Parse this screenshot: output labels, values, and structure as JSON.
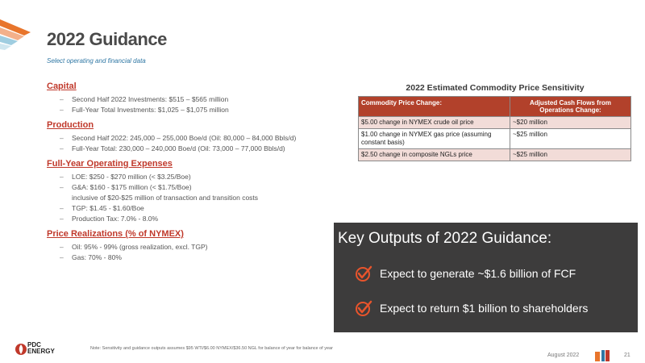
{
  "title": "2022 Guidance",
  "subtitle": "Select operating and financial data",
  "sections": [
    {
      "heading": "Capital",
      "items": [
        {
          "text": "Second Half 2022 Investments: $515 – $565 million"
        },
        {
          "text": "Full-Year Total Investments: $1,025 – $1,075 million"
        }
      ]
    },
    {
      "heading": "Production",
      "items": [
        {
          "text": "Second Half 2022: 245,000 – 255,000 Boe/d (Oil: 80,000 – 84,000 Bbls/d)"
        },
        {
          "text": "Full-Year Total: 230,000 – 240,000 Boe/d (Oil: 73,000 – 77,000 Bbls/d)"
        }
      ]
    },
    {
      "heading": "Full-Year Operating Expenses",
      "items": [
        {
          "text": "LOE: $250 - $270 million (< $3.25/Boe)"
        },
        {
          "text": "G&A: $160 - $175 million (< $1.75/Boe)",
          "sub": "inclusive of $20-$25 million of transaction and transition costs"
        },
        {
          "text": "TGP: $1.45 - $1.60/Boe"
        },
        {
          "text": "Production Tax: 7.0% - 8.0%"
        }
      ]
    },
    {
      "heading": "Price Realizations (% of NYMEX)",
      "items": [
        {
          "text": "Oil: 95% - 99% (gross realization, excl. TGP)"
        },
        {
          "text": "Gas: 70% - 80%"
        }
      ]
    }
  ],
  "sensitivity": {
    "title": "2022 Estimated Commodity Price Sensitivity",
    "headers": [
      "Commodity Price Change:",
      "Adjusted Cash Flows from Operations Change:"
    ],
    "rows": [
      [
        "$5.00 change in NYMEX crude oil price",
        "~$20 million"
      ],
      [
        "$1.00 change in NYMEX gas price (assuming constant basis)",
        "~$25 million"
      ],
      [
        "$2.50 change in composite NGLs price",
        "~$25 million"
      ]
    ]
  },
  "key_outputs": {
    "title": "Key Outputs of 2022 Guidance:",
    "items": [
      "Expect to generate ~$1.6 billion of FCF",
      "Expect to return $1 billion to shareholders"
    ],
    "check_color": "#e8542c"
  },
  "footer": {
    "logo_line1": "PDC",
    "logo_line2": "ENERGY",
    "note": "Note: Sensitivity and guidance outputs assumes $95 WTI/$6.00 NYMEX/$36.50 NGL for balance of year for balance of year",
    "date": "August 2022",
    "page": "21"
  },
  "colors": {
    "accent_red": "#c0392b",
    "table_header": "#b2412b",
    "table_stripe": "#f2dcd8",
    "dark_panel": "#3d3c3c",
    "subtitle_blue": "#2f77a4"
  }
}
